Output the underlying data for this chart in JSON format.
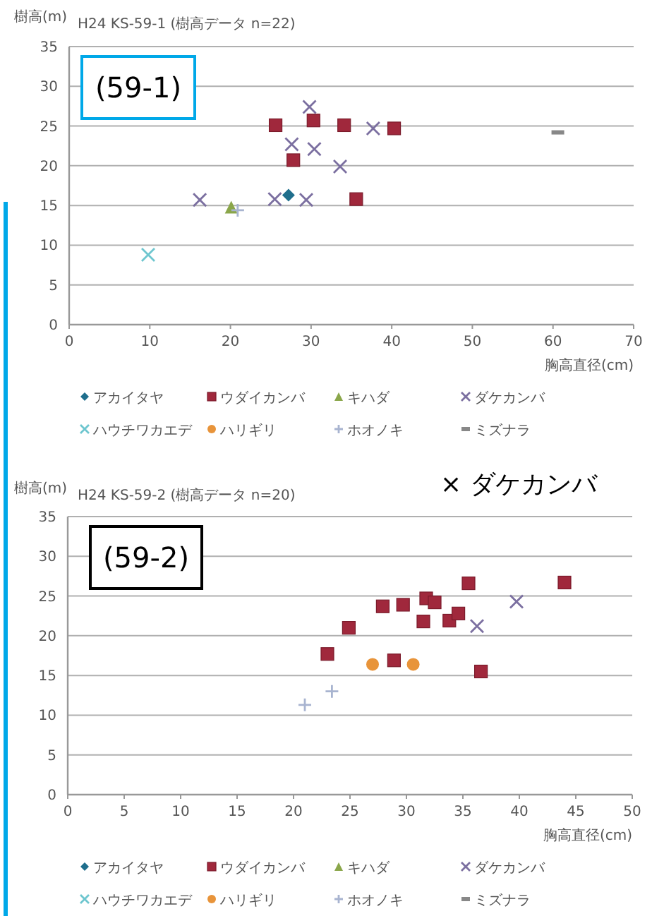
{
  "chart_data": [
    {
      "type": "scatter",
      "title": "H24 KS-59-1 (樹高データ n=22)",
      "ylabel": "樹高(m)",
      "xlabel": "胸高直径(cm)",
      "xlim": [
        0,
        70
      ],
      "xticks": [
        0,
        10,
        20,
        30,
        40,
        50,
        60,
        70
      ],
      "ylim": [
        0,
        35
      ],
      "yticks": [
        0,
        5,
        10,
        15,
        20,
        25,
        30,
        35
      ],
      "grid": "y",
      "legend": "bottom",
      "annotations": [
        "(59-1)"
      ],
      "series": [
        {
          "name": "アカイタヤ",
          "color": "#1f6e8c",
          "marker": "diamond",
          "x": [
            27.2
          ],
          "values": [
            16.3
          ]
        },
        {
          "name": "ウダイカンバ",
          "color": "#a0283c",
          "marker": "square",
          "x": [
            25.6,
            30.3,
            34.1,
            40.3,
            27.8,
            35.6
          ],
          "values": [
            25.1,
            25.7,
            25.1,
            24.7,
            20.7,
            15.8
          ]
        },
        {
          "name": "キハダ",
          "color": "#8aa64a",
          "marker": "triangle",
          "x": [
            20.1
          ],
          "values": [
            14.8
          ]
        },
        {
          "name": "ダケカンバ",
          "color": "#7b6fa0",
          "marker": "cross",
          "x": [
            29.8,
            27.6,
            30.4,
            33.6,
            37.7,
            16.2,
            25.5,
            29.4
          ],
          "values": [
            27.4,
            22.7,
            22.1,
            19.9,
            24.7,
            15.7,
            15.8,
            15.7
          ]
        },
        {
          "name": "ハウチワカエデ",
          "color": "#6ec6cf",
          "marker": "cross",
          "x": [
            9.8
          ],
          "values": [
            8.8
          ]
        },
        {
          "name": "ハリギリ",
          "color": "#e8943a",
          "marker": "circle"
        },
        {
          "name": "ホオノキ",
          "color": "#a8b4d0",
          "marker": "plus",
          "x": [
            20.9
          ],
          "values": [
            14.4
          ]
        },
        {
          "name": "ミズナラ",
          "color": "#888888",
          "x": [
            60.6
          ],
          "values": [
            24.2
          ]
        }
      ]
    },
    {
      "type": "scatter",
      "title": "H24 KS-59-2 (樹高データ n=20)",
      "ylabel": "樹高(m)",
      "xlabel": "胸高直径(cm)",
      "xlim": [
        0,
        50
      ],
      "xticks": [
        0,
        5,
        10,
        15,
        20,
        25,
        30,
        35,
        40,
        45,
        50
      ],
      "ylim": [
        0,
        35
      ],
      "yticks": [
        0,
        5,
        10,
        15,
        20,
        25,
        30,
        35
      ],
      "grid": "y",
      "legend": "bottom",
      "annotations": [
        "(59-2)",
        "× ダケカンバ"
      ],
      "series": [
        {
          "name": "アカイタヤ",
          "color": "#1f6e8c",
          "marker": "diamond"
        },
        {
          "name": "ウダイカンバ",
          "color": "#a0283c",
          "marker": "square",
          "x": [
            23.0,
            24.9,
            27.9,
            29.7,
            28.9,
            31.75,
            32.5,
            31.5,
            33.8,
            34.6,
            35.5,
            36.6,
            44.0
          ],
          "values": [
            17.7,
            21.0,
            23.7,
            23.9,
            16.9,
            24.7,
            24.2,
            21.8,
            21.9,
            22.8,
            26.6,
            15.5,
            26.7
          ]
        },
        {
          "name": "キハダ",
          "color": "#8aa64a",
          "marker": "triangle"
        },
        {
          "name": "ダケカンバ",
          "color": "#7b6fa0",
          "marker": "cross",
          "x": [
            36.25,
            39.75
          ],
          "values": [
            21.2,
            24.3
          ]
        },
        {
          "name": "ハウチワカエデ",
          "color": "#6ec6cf",
          "marker": "cross"
        },
        {
          "name": "ハリギリ",
          "color": "#e8943a",
          "marker": "circle",
          "x": [
            27.0,
            30.6
          ],
          "values": [
            16.4,
            16.4
          ]
        },
        {
          "name": "ホオノキ",
          "color": "#a8b4d0",
          "marker": "plus",
          "x": [
            21.0,
            23.4
          ],
          "values": [
            11.3,
            13.0
          ]
        },
        {
          "name": "ミズナラ",
          "color": "#888888"
        }
      ]
    }
  ]
}
